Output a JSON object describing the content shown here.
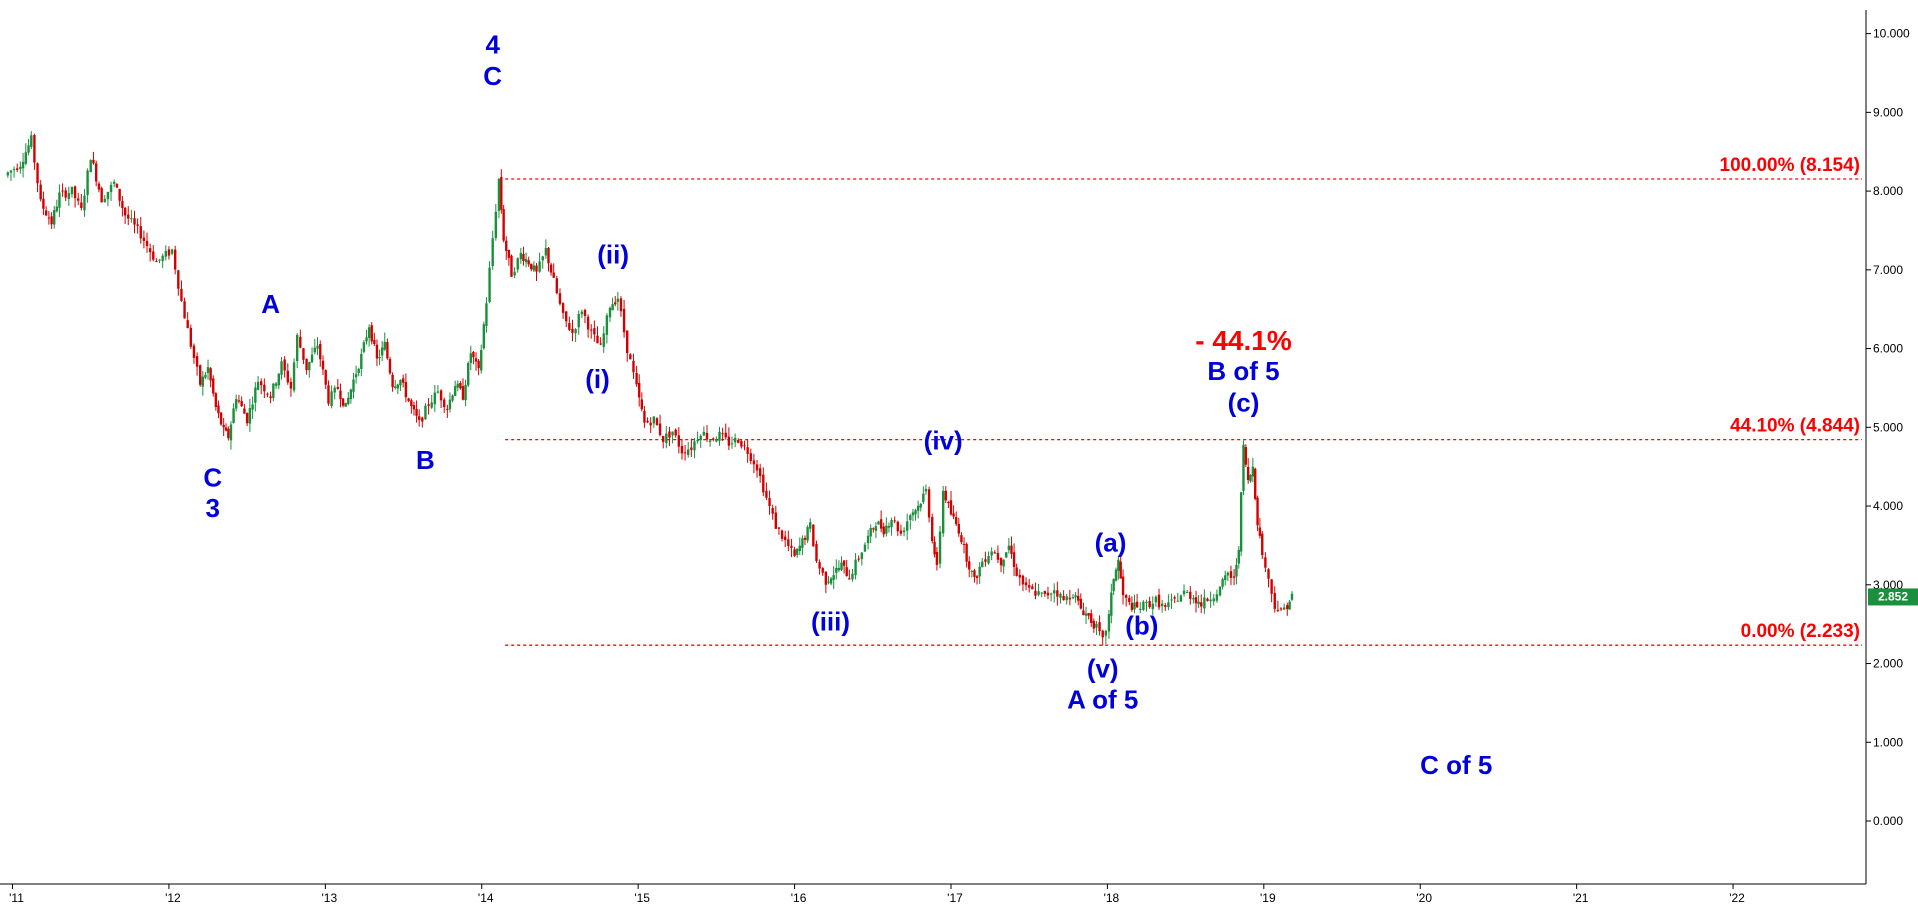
{
  "chart_data": {
    "type": "candlestick",
    "y_axis": {
      "ticks": [
        "0.000",
        "1.000",
        "2.000",
        "3.000",
        "4.000",
        "5.000",
        "6.000",
        "7.000",
        "8.000",
        "9.000",
        "10.000"
      ],
      "ylim": [
        -0.8,
        10.3
      ],
      "side": "right"
    },
    "x_axis": {
      "ticks": [
        "'11",
        "'12",
        "'13",
        "'14",
        "'15",
        "'16",
        "'17",
        "'18",
        "'19",
        "'20",
        "'21",
        "'22"
      ],
      "xlim": [
        2010.92,
        2022.85
      ]
    },
    "last_price": "2.852",
    "colors": {
      "up": "#1a8f3c",
      "down": "#d40000",
      "fib": "#ff0000",
      "wave": "#0000dd",
      "price_tag": "#1a8f3c"
    },
    "fib_levels": [
      {
        "value": 8.154,
        "label": "100.00% (8.154)"
      },
      {
        "value": 4.844,
        "label": "44.10% (4.844)"
      },
      {
        "value": 2.233,
        "label": "0.00% (2.233)"
      }
    ],
    "fib_start_x": 2014.15,
    "annotations": [
      {
        "text": "4",
        "x": 2014.07,
        "y": 9.75
      },
      {
        "text": "C",
        "x": 2014.07,
        "y": 9.35
      },
      {
        "text": "A",
        "x": 2012.65,
        "y": 6.45
      },
      {
        "text": "C",
        "x": 2012.28,
        "y": 4.25
      },
      {
        "text": "3",
        "x": 2012.28,
        "y": 3.86
      },
      {
        "text": "B",
        "x": 2013.64,
        "y": 4.47
      },
      {
        "text": "(ii)",
        "x": 2014.84,
        "y": 7.08
      },
      {
        "text": "(i)",
        "x": 2014.74,
        "y": 5.5
      },
      {
        "text": "(iii)",
        "x": 2016.23,
        "y": 2.42
      },
      {
        "text": "(iv)",
        "x": 2016.95,
        "y": 4.72
      },
      {
        "text": "(a)",
        "x": 2018.02,
        "y": 3.42
      },
      {
        "text": "(b)",
        "x": 2018.22,
        "y": 2.37
      },
      {
        "text": "(v)",
        "x": 2017.97,
        "y": 1.82
      },
      {
        "text": "A of 5",
        "x": 2017.97,
        "y": 1.43
      },
      {
        "text": "B of 5",
        "x": 2018.87,
        "y": 5.6
      },
      {
        "text": "(c)",
        "x": 2018.87,
        "y": 5.2
      },
      {
        "text": "C of 5",
        "x": 2020.23,
        "y": 0.6
      }
    ],
    "pct_annotation": {
      "text": "- 44.1%",
      "x": 2018.87,
      "y": 5.98
    },
    "price_path": [
      [
        2010.95,
        8.2
      ],
      [
        2011.05,
        8.35
      ],
      [
        2011.12,
        8.65
      ],
      [
        2011.18,
        7.85
      ],
      [
        2011.25,
        7.6
      ],
      [
        2011.3,
        7.95
      ],
      [
        2011.38,
        8.0
      ],
      [
        2011.44,
        7.75
      ],
      [
        2011.5,
        8.45
      ],
      [
        2011.57,
        7.9
      ],
      [
        2011.65,
        8.1
      ],
      [
        2011.72,
        7.7
      ],
      [
        2011.82,
        7.45
      ],
      [
        2011.92,
        7.1
      ],
      [
        2012.02,
        7.25
      ],
      [
        2012.08,
        6.6
      ],
      [
        2012.14,
        6.05
      ],
      [
        2012.2,
        5.55
      ],
      [
        2012.25,
        5.75
      ],
      [
        2012.3,
        5.25
      ],
      [
        2012.35,
        4.95
      ],
      [
        2012.38,
        4.88
      ],
      [
        2012.43,
        5.4
      ],
      [
        2012.5,
        5.1
      ],
      [
        2012.57,
        5.6
      ],
      [
        2012.65,
        5.4
      ],
      [
        2012.72,
        5.8
      ],
      [
        2012.78,
        5.5
      ],
      [
        2012.82,
        6.15
      ],
      [
        2012.88,
        5.75
      ],
      [
        2012.95,
        6.05
      ],
      [
        2013.02,
        5.35
      ],
      [
        2013.08,
        5.5
      ],
      [
        2013.13,
        5.25
      ],
      [
        2013.18,
        5.6
      ],
      [
        2013.23,
        5.9
      ],
      [
        2013.28,
        6.3
      ],
      [
        2013.33,
        5.85
      ],
      [
        2013.38,
        6.05
      ],
      [
        2013.43,
        5.55
      ],
      [
        2013.48,
        5.6
      ],
      [
        2013.55,
        5.25
      ],
      [
        2013.6,
        5.05
      ],
      [
        2013.66,
        5.3
      ],
      [
        2013.72,
        5.45
      ],
      [
        2013.78,
        5.25
      ],
      [
        2013.83,
        5.55
      ],
      [
        2013.88,
        5.4
      ],
      [
        2013.93,
        5.95
      ],
      [
        2013.98,
        5.7
      ],
      [
        2014.03,
        6.6
      ],
      [
        2014.07,
        7.4
      ],
      [
        2014.11,
        8.15
      ],
      [
        2014.14,
        7.4
      ],
      [
        2014.19,
        6.95
      ],
      [
        2014.25,
        7.2
      ],
      [
        2014.3,
        7.1
      ],
      [
        2014.35,
        6.95
      ],
      [
        2014.41,
        7.25
      ],
      [
        2014.46,
        6.85
      ],
      [
        2014.52,
        6.4
      ],
      [
        2014.58,
        6.2
      ],
      [
        2014.64,
        6.5
      ],
      [
        2014.7,
        6.2
      ],
      [
        2014.76,
        6.0
      ],
      [
        2014.82,
        6.55
      ],
      [
        2014.87,
        6.65
      ],
      [
        2014.93,
        6.0
      ],
      [
        2014.99,
        5.5
      ],
      [
        2015.04,
        5.05
      ],
      [
        2015.1,
        5.1
      ],
      [
        2015.16,
        4.85
      ],
      [
        2015.22,
        4.95
      ],
      [
        2015.28,
        4.7
      ],
      [
        2015.34,
        4.75
      ],
      [
        2015.4,
        4.95
      ],
      [
        2015.46,
        4.85
      ],
      [
        2015.52,
        4.9
      ],
      [
        2015.58,
        4.8
      ],
      [
        2015.64,
        4.85
      ],
      [
        2015.7,
        4.7
      ],
      [
        2015.76,
        4.5
      ],
      [
        2015.82,
        4.1
      ],
      [
        2015.88,
        3.75
      ],
      [
        2015.94,
        3.55
      ],
      [
        2016.0,
        3.35
      ],
      [
        2016.05,
        3.55
      ],
      [
        2016.1,
        3.75
      ],
      [
        2016.14,
        3.3
      ],
      [
        2016.2,
        3.05
      ],
      [
        2016.25,
        3.15
      ],
      [
        2016.3,
        3.25
      ],
      [
        2016.35,
        3.1
      ],
      [
        2016.41,
        3.35
      ],
      [
        2016.47,
        3.6
      ],
      [
        2016.52,
        3.8
      ],
      [
        2016.57,
        3.7
      ],
      [
        2016.62,
        3.85
      ],
      [
        2016.68,
        3.65
      ],
      [
        2016.74,
        3.9
      ],
      [
        2016.79,
        4.0
      ],
      [
        2016.84,
        4.2
      ],
      [
        2016.88,
        3.6
      ],
      [
        2016.91,
        3.2
      ],
      [
        2016.95,
        4.2
      ],
      [
        2017.0,
        3.9
      ],
      [
        2017.05,
        3.7
      ],
      [
        2017.1,
        3.35
      ],
      [
        2017.15,
        3.05
      ],
      [
        2017.2,
        3.3
      ],
      [
        2017.26,
        3.45
      ],
      [
        2017.32,
        3.3
      ],
      [
        2017.37,
        3.5
      ],
      [
        2017.42,
        3.15
      ],
      [
        2017.48,
        2.95
      ],
      [
        2017.54,
        2.9
      ],
      [
        2017.6,
        2.85
      ],
      [
        2017.66,
        2.95
      ],
      [
        2017.72,
        2.8
      ],
      [
        2017.78,
        2.9
      ],
      [
        2017.83,
        2.7
      ],
      [
        2017.88,
        2.6
      ],
      [
        2017.93,
        2.45
      ],
      [
        2017.97,
        2.28
      ],
      [
        2018.01,
        2.6
      ],
      [
        2018.04,
        3.1
      ],
      [
        2018.07,
        3.3
      ],
      [
        2018.1,
        2.85
      ],
      [
        2018.14,
        2.75
      ],
      [
        2018.19,
        2.7
      ],
      [
        2018.25,
        2.75
      ],
      [
        2018.31,
        2.8
      ],
      [
        2018.37,
        2.7
      ],
      [
        2018.43,
        2.8
      ],
      [
        2018.49,
        2.9
      ],
      [
        2018.55,
        2.85
      ],
      [
        2018.6,
        2.75
      ],
      [
        2018.66,
        2.85
      ],
      [
        2018.72,
        2.95
      ],
      [
        2018.77,
        3.15
      ],
      [
        2018.81,
        3.05
      ],
      [
        2018.84,
        3.5
      ],
      [
        2018.87,
        4.75
      ],
      [
        2018.9,
        4.3
      ],
      [
        2018.93,
        4.5
      ],
      [
        2018.96,
        3.8
      ],
      [
        2018.99,
        3.4
      ],
      [
        2019.03,
        3.05
      ],
      [
        2019.07,
        2.75
      ],
      [
        2019.11,
        2.65
      ],
      [
        2019.15,
        2.75
      ],
      [
        2019.18,
        2.85
      ]
    ]
  }
}
